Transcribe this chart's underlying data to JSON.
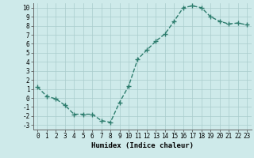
{
  "x": [
    0,
    1,
    2,
    3,
    4,
    5,
    6,
    7,
    8,
    9,
    10,
    11,
    12,
    13,
    14,
    15,
    16,
    17,
    18,
    19,
    20,
    21,
    22,
    23
  ],
  "y": [
    1.2,
    0.2,
    -0.1,
    -0.8,
    -1.8,
    -1.8,
    -1.8,
    -2.5,
    -2.7,
    -0.5,
    1.3,
    4.3,
    5.3,
    6.3,
    7.1,
    8.5,
    10.0,
    10.2,
    10.0,
    9.0,
    8.5,
    8.2,
    8.3,
    8.1
  ],
  "line_color": "#2e7d6e",
  "marker": "+",
  "markersize": 4,
  "linewidth": 1.0,
  "bg_color": "#ceeaea",
  "grid_color": "#aacccc",
  "xlabel": "Humidex (Indice chaleur)",
  "xlim": [
    -0.5,
    23.5
  ],
  "ylim": [
    -3.5,
    10.5
  ],
  "yticks": [
    -3,
    -2,
    -1,
    0,
    1,
    2,
    3,
    4,
    5,
    6,
    7,
    8,
    9,
    10
  ],
  "xticks": [
    0,
    1,
    2,
    3,
    4,
    5,
    6,
    7,
    8,
    9,
    10,
    11,
    12,
    13,
    14,
    15,
    16,
    17,
    18,
    19,
    20,
    21,
    22,
    23
  ],
  "tick_fontsize": 5.5,
  "xlabel_fontsize": 6.5
}
